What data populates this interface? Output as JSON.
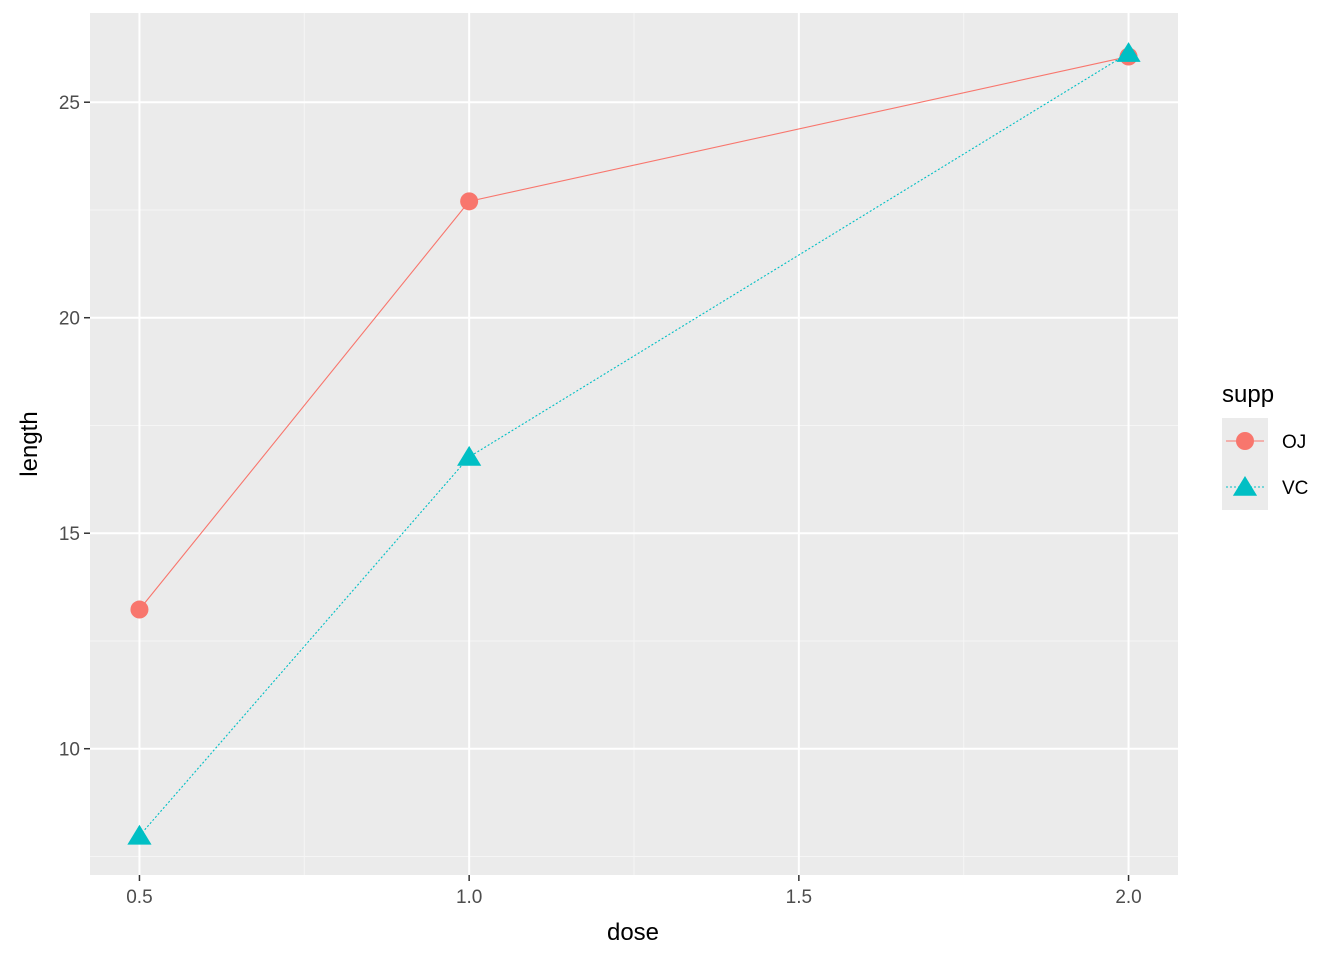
{
  "chart_data": {
    "type": "line",
    "xlabel": "dose",
    "ylabel": "length",
    "x_ticks": [
      0.5,
      1.0,
      1.5,
      2.0
    ],
    "x_tick_labels": [
      "0.5",
      "1.0",
      "1.5",
      "2.0"
    ],
    "y_ticks": [
      10,
      15,
      20,
      25
    ],
    "y_tick_labels": [
      "10",
      "15",
      "20",
      "25"
    ],
    "xlim": [
      0.425,
      2.075
    ],
    "ylim": [
      7.07,
      27.07
    ],
    "grid": true,
    "legend": {
      "title": "supp",
      "placement": "right"
    },
    "series": [
      {
        "name": "OJ",
        "x": [
          0.5,
          1.0,
          2.0
        ],
        "y": [
          13.23,
          22.7,
          26.06
        ],
        "color": "#F8766D",
        "marker": "circle",
        "linestyle": "solid"
      },
      {
        "name": "VC",
        "x": [
          0.5,
          1.0,
          2.0
        ],
        "y": [
          7.98,
          16.77,
          26.14
        ],
        "color": "#00BFC4",
        "marker": "triangle",
        "linestyle": "dotted"
      }
    ]
  },
  "colors": {
    "panel_background": "#EBEBEB",
    "grid_major": "#FFFFFF",
    "grid_minor": "#F5F5F5"
  }
}
